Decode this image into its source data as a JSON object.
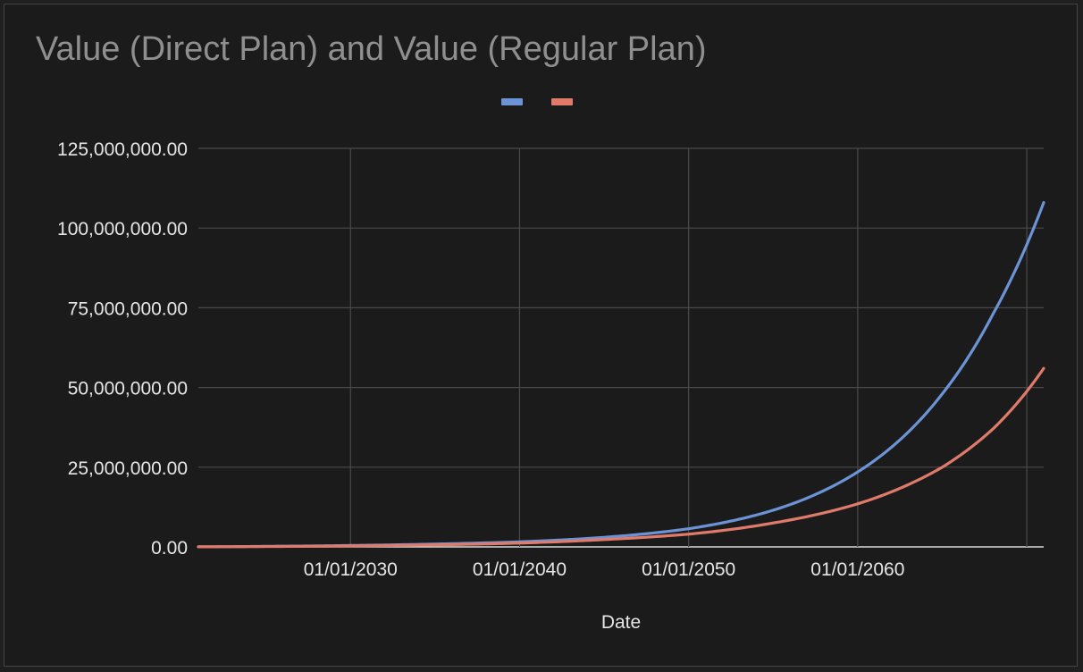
{
  "chart_data": {
    "type": "line",
    "title": "Value (Direct Plan) and Value (Regular Plan)",
    "xlabel": "Date",
    "ylabel": "",
    "x_ticks": [
      "01/01/2030",
      "01/01/2040",
      "01/01/2050",
      "01/01/2060"
    ],
    "y_ticks": [
      "0.00",
      "25,000,000.00",
      "50,000,000.00",
      "75,000,000.00",
      "100,000,000.00",
      "125,000,000.00"
    ],
    "xlim": [
      "01/01/2021",
      "01/01/2071"
    ],
    "ylim": [
      0,
      125000000
    ],
    "grid": true,
    "legend": "top-center",
    "x": [
      "01/01/2021",
      "01/01/2025",
      "01/01/2030",
      "01/01/2035",
      "01/01/2040",
      "01/01/2045",
      "01/01/2050",
      "01/01/2055",
      "01/01/2060",
      "01/01/2065",
      "01/01/2068",
      "01/01/2071"
    ],
    "series": [
      {
        "color": "#6b93d6",
        "values": [
          40000,
          180000,
          450000,
          900000,
          1600000,
          3000000,
          5700000,
          11500000,
          23500000,
          48000000,
          73000000,
          108000000
        ]
      },
      {
        "color": "#e07b6b",
        "values": [
          30000,
          120000,
          320000,
          650000,
          1200000,
          2300000,
          4000000,
          7500000,
          13500000,
          25000000,
          37000000,
          56000000
        ]
      }
    ]
  },
  "colors": {
    "background": "#1b1b1b",
    "grid": "#4a4a4a",
    "baseline": "#d9d9d9"
  }
}
